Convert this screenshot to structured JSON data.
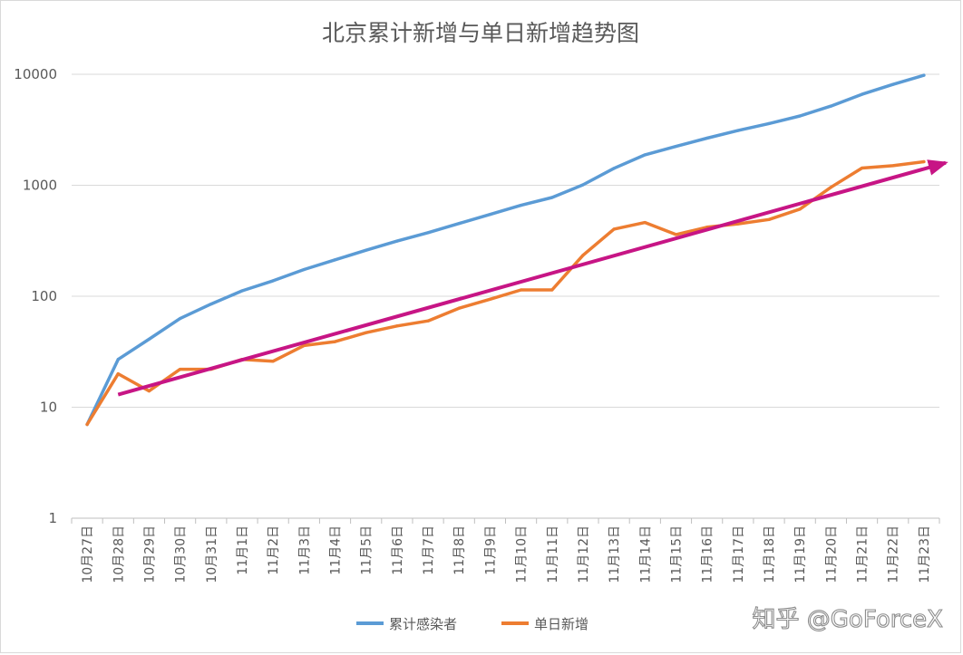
{
  "chart_data": {
    "type": "line",
    "title": "北京累计新增与单日新增趋势图",
    "xlabel": "",
    "ylabel": "",
    "y_scale": "log",
    "ylim": [
      1,
      10000
    ],
    "y_ticks": [
      "1",
      "10",
      "100",
      "1000",
      "10000"
    ],
    "categories": [
      "10月27日",
      "10月28日",
      "10月29日",
      "10月30日",
      "10月31日",
      "11月1日",
      "11月2日",
      "11月3日",
      "11月4日",
      "11月5日",
      "11月6日",
      "11月7日",
      "11月8日",
      "11月9日",
      "11月10日",
      "11月11日",
      "11月12日",
      "11月13日",
      "11月14日",
      "11月15日",
      "11月16日",
      "11月17日",
      "11月18日",
      "11月19日",
      "11月20日",
      "11月21日",
      "11月22日",
      "11月23日"
    ],
    "series": [
      {
        "name": "累计感染者",
        "color": "#5b9bd5",
        "values": [
          7,
          27,
          41,
          63,
          85,
          112,
          138,
          174,
          213,
          260,
          314,
          374,
          452,
          546,
          660,
          776,
          1010,
          1420,
          1880,
          2240,
          2660,
          3110,
          3600,
          4210,
          5170,
          6600,
          8100,
          9800
        ]
      },
      {
        "name": "单日新增",
        "color": "#ed7d31",
        "values": [
          7,
          20,
          14,
          22,
          22,
          27,
          26,
          36,
          39,
          47,
          54,
          60,
          78,
          94,
          114,
          114,
          234,
          403,
          462,
          360,
          419,
          449,
          491,
          610,
          960,
          1430,
          1500,
          1630
        ]
      }
    ],
    "trend_arrow": {
      "color": "#c71585",
      "from": {
        "x": "10月28日",
        "y": 13
      },
      "to": {
        "x": "11月23日",
        "y": 1450
      }
    },
    "legend_position": "bottom",
    "grid": true
  },
  "watermark": "知乎 @GoForceX"
}
